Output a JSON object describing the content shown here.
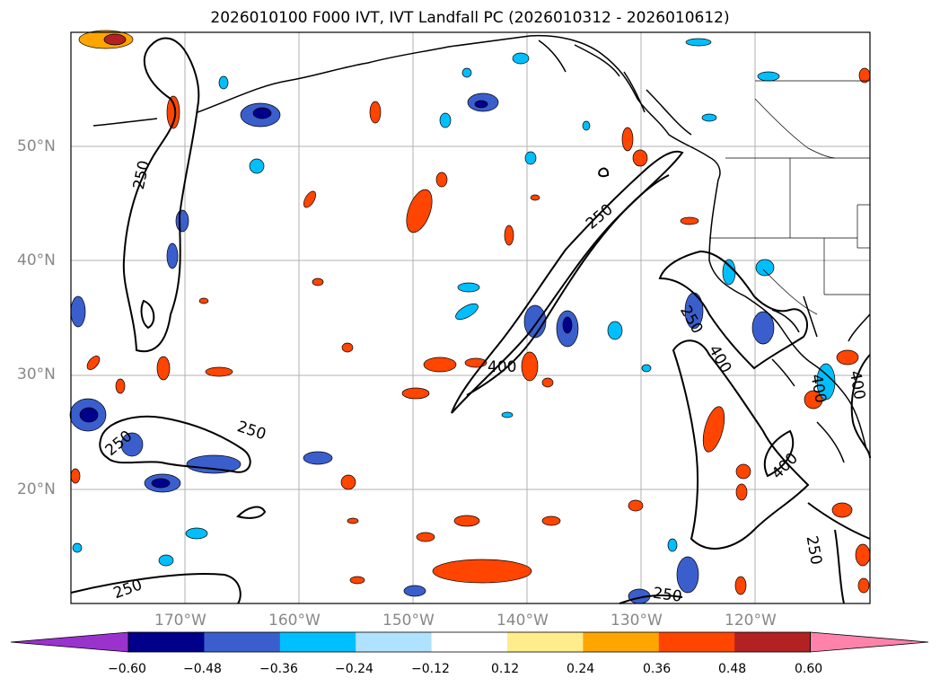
{
  "title": "2026010100 F000 IVT, IVT Landfall PC (2026010312 - 2026010612)",
  "lat_labels": [
    "50°N",
    "40°N",
    "30°N",
    "20°N"
  ],
  "lon_labels": [
    "170°W",
    "160°W",
    "150°W",
    "140°W",
    "130°W",
    "120°W"
  ],
  "contour_labels": [
    "250",
    "250",
    "250",
    "250",
    "250",
    "250",
    "250",
    "400",
    "400",
    "400",
    "400",
    "400",
    "250"
  ],
  "colorbar": {
    "ticks": [
      "−0.60",
      "−0.48",
      "−0.36",
      "−0.24",
      "−0.12",
      "0.12",
      "0.24",
      "0.36",
      "0.48",
      "0.60"
    ],
    "colors": [
      "#9a32cd",
      "#00008b",
      "#3a5fcd",
      "#00bfff",
      "#b0e2ff",
      "#ffffff",
      "#ffec8b",
      "#ffa500",
      "#ff4500",
      "#b22222",
      "#ff82ab"
    ]
  },
  "colors": {
    "gridline": "#b0b0b0",
    "contour": "#000000",
    "coast": "#000000"
  }
}
